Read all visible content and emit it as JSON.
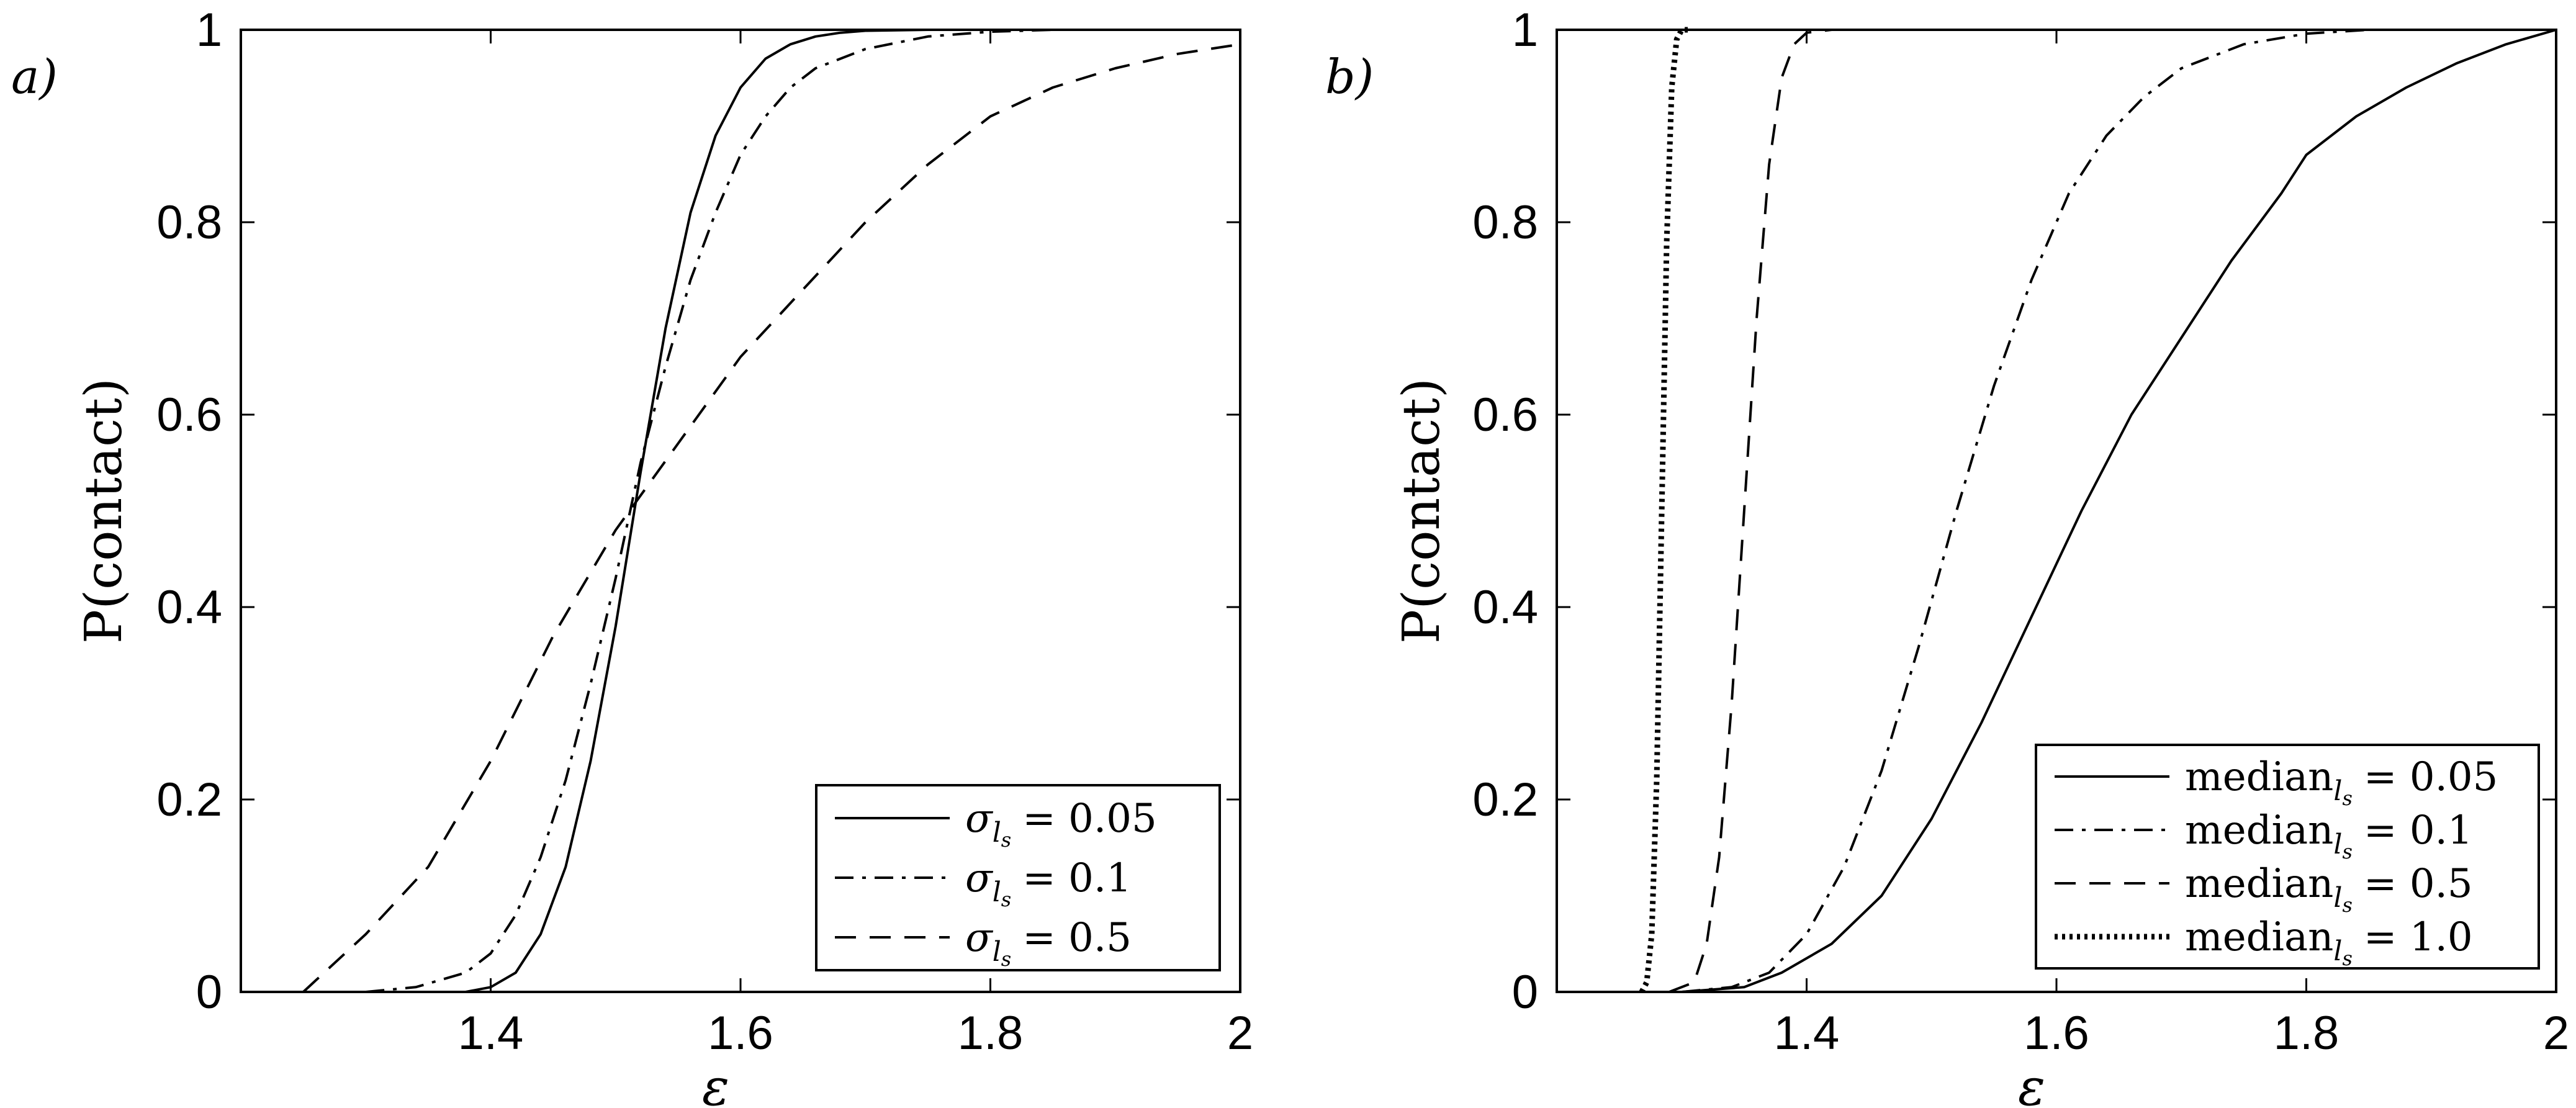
{
  "chart_data": [
    {
      "type": "line",
      "panel_label": "a)",
      "ylabel": "P(contact)",
      "xlabel": "ε",
      "xlim": [
        1.2,
        2.0
      ],
      "ylim": [
        0,
        1
      ],
      "xticks": [
        1.4,
        1.6,
        1.8,
        2.0
      ],
      "xtick_labels": [
        "1.4",
        "1.6",
        "1.8",
        "2"
      ],
      "yticks": [
        0,
        0.2,
        0.4,
        0.6,
        0.8,
        1.0
      ],
      "ytick_labels": [
        "0",
        "0.2",
        "0.4",
        "0.6",
        "0.8",
        "1"
      ],
      "grid": false,
      "legend_position": "bottom-right",
      "series": [
        {
          "name": "σ_ls = 0.05",
          "legend_symbol": "σ",
          "legend_sub": "l",
          "legend_subsub": "s",
          "legend_value": "= 0.05",
          "style": "solid",
          "x": [
            1.38,
            1.4,
            1.42,
            1.44,
            1.46,
            1.48,
            1.5,
            1.52,
            1.54,
            1.56,
            1.58,
            1.6,
            1.62,
            1.64,
            1.66,
            1.68,
            1.7,
            1.75,
            1.8,
            2.0
          ],
          "y": [
            0.0,
            0.005,
            0.02,
            0.06,
            0.13,
            0.24,
            0.38,
            0.54,
            0.69,
            0.81,
            0.89,
            0.94,
            0.97,
            0.985,
            0.993,
            0.997,
            0.999,
            1.0,
            1.0,
            1.0
          ]
        },
        {
          "name": "σ_ls = 0.1",
          "legend_symbol": "σ",
          "legend_sub": "l",
          "legend_subsub": "s",
          "legend_value": "= 0.1",
          "style": "dashdot",
          "x": [
            1.3,
            1.34,
            1.38,
            1.4,
            1.42,
            1.44,
            1.46,
            1.48,
            1.5,
            1.52,
            1.54,
            1.56,
            1.58,
            1.6,
            1.62,
            1.64,
            1.66,
            1.7,
            1.75,
            1.8,
            1.85,
            1.9
          ],
          "y": [
            0.0,
            0.005,
            0.02,
            0.04,
            0.08,
            0.14,
            0.22,
            0.32,
            0.43,
            0.55,
            0.65,
            0.74,
            0.81,
            0.87,
            0.91,
            0.94,
            0.96,
            0.98,
            0.993,
            0.998,
            1.0,
            1.0
          ]
        },
        {
          "name": "σ_ls = 0.5",
          "legend_symbol": "σ",
          "legend_sub": "l",
          "legend_subsub": "s",
          "legend_value": "= 0.5",
          "style": "dashed",
          "x": [
            1.25,
            1.3,
            1.35,
            1.4,
            1.45,
            1.5,
            1.55,
            1.6,
            1.65,
            1.7,
            1.75,
            1.8,
            1.85,
            1.9,
            1.95,
            2.0
          ],
          "y": [
            0.0,
            0.06,
            0.13,
            0.24,
            0.37,
            0.48,
            0.57,
            0.66,
            0.73,
            0.8,
            0.86,
            0.91,
            0.94,
            0.96,
            0.975,
            0.985
          ]
        }
      ]
    },
    {
      "type": "line",
      "panel_label": "b)",
      "ylabel": "P(contact)",
      "xlabel": "ε",
      "xlim": [
        1.2,
        2.0
      ],
      "ylim": [
        0,
        1
      ],
      "xticks": [
        1.4,
        1.6,
        1.8,
        2.0
      ],
      "xtick_labels": [
        "1.4",
        "1.6",
        "1.8",
        "2"
      ],
      "yticks": [
        0,
        0.2,
        0.4,
        0.6,
        0.8,
        1.0
      ],
      "ytick_labels": [
        "0",
        "0.2",
        "0.4",
        "0.6",
        "0.8",
        "1"
      ],
      "grid": false,
      "legend_position": "bottom-right",
      "series": [
        {
          "name": "median_ls = 0.05",
          "legend_symbol": "median",
          "legend_sub": "l",
          "legend_subsub": "s",
          "legend_value": "= 0.05",
          "style": "solid",
          "x": [
            1.3,
            1.35,
            1.38,
            1.42,
            1.46,
            1.5,
            1.54,
            1.58,
            1.62,
            1.66,
            1.7,
            1.74,
            1.78,
            1.8,
            1.84,
            1.88,
            1.92,
            1.96,
            2.0
          ],
          "y": [
            0.0,
            0.005,
            0.02,
            0.05,
            0.1,
            0.18,
            0.28,
            0.39,
            0.5,
            0.6,
            0.68,
            0.76,
            0.83,
            0.87,
            0.91,
            0.94,
            0.965,
            0.985,
            1.0
          ]
        },
        {
          "name": "median_ls = 0.1",
          "legend_symbol": "median",
          "legend_sub": "l",
          "legend_subsub": "s",
          "legend_value": "= 0.1",
          "style": "dashdot",
          "x": [
            1.3,
            1.34,
            1.37,
            1.4,
            1.43,
            1.46,
            1.49,
            1.52,
            1.55,
            1.58,
            1.61,
            1.64,
            1.67,
            1.7,
            1.75,
            1.8,
            1.85
          ],
          "y": [
            0.0,
            0.005,
            0.02,
            0.06,
            0.13,
            0.23,
            0.36,
            0.5,
            0.63,
            0.74,
            0.83,
            0.89,
            0.93,
            0.96,
            0.985,
            0.996,
            1.0
          ]
        },
        {
          "name": "median_ls = 0.5",
          "legend_symbol": "median",
          "legend_sub": "l",
          "legend_subsub": "s",
          "legend_value": "= 0.5",
          "style": "dashed",
          "x": [
            1.29,
            1.31,
            1.32,
            1.33,
            1.34,
            1.35,
            1.36,
            1.37,
            1.38,
            1.39,
            1.4,
            1.42
          ],
          "y": [
            0.0,
            0.01,
            0.05,
            0.14,
            0.3,
            0.5,
            0.7,
            0.86,
            0.95,
            0.985,
            0.997,
            1.0
          ]
        },
        {
          "name": "median_ls = 1.0",
          "legend_symbol": "median",
          "legend_sub": "l",
          "legend_subsub": "s",
          "legend_value": "= 1.0",
          "style": "dotted",
          "x": [
            1.268,
            1.272,
            1.276,
            1.28,
            1.284,
            1.288,
            1.292,
            1.296,
            1.3,
            1.305
          ],
          "y": [
            0.0,
            0.01,
            0.06,
            0.22,
            0.5,
            0.78,
            0.94,
            0.99,
            1.0,
            1.0
          ]
        }
      ]
    }
  ]
}
